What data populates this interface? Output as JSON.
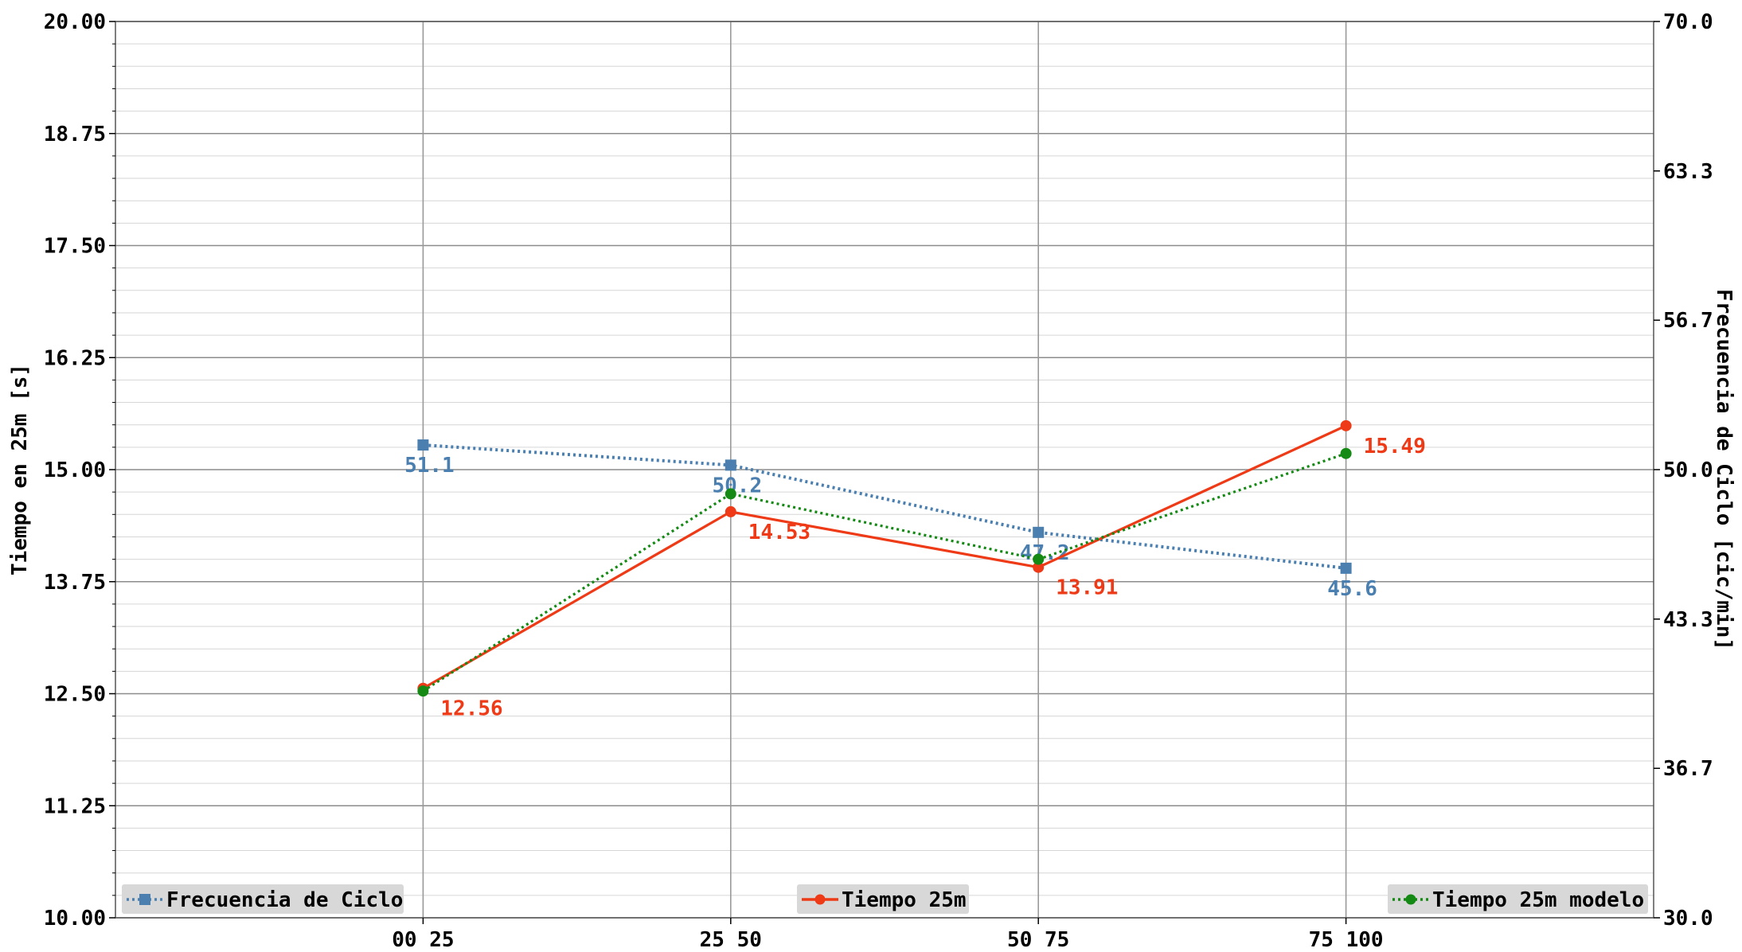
{
  "chart_data": {
    "type": "line",
    "categories": [
      "00_25",
      "25_50",
      "50_75",
      "75_100"
    ],
    "left_axis": {
      "label": "Tiempo en 25m [s]",
      "ylim": [
        10.0,
        20.0
      ],
      "ticks": [
        "10.00",
        "11.25",
        "12.50",
        "13.75",
        "15.00",
        "16.25",
        "17.50",
        "18.75",
        "20.00"
      ],
      "tick_values": [
        10.0,
        11.25,
        12.5,
        13.75,
        15.0,
        16.25,
        17.5,
        18.75,
        20.0
      ]
    },
    "right_axis": {
      "label": "Frecuencia de Ciclo [cic/min]",
      "ylim": [
        30.0,
        70.0
      ],
      "ticks": [
        "30.0",
        "36.7",
        "43.3",
        "50.0",
        "56.7",
        "63.3",
        "70.0"
      ],
      "tick_values": [
        30.0,
        36.67,
        43.33,
        50.0,
        56.67,
        63.33,
        70.0
      ]
    },
    "grid": true,
    "series": [
      {
        "name": "Frecuencia de Ciclo",
        "axis": "right",
        "values": [
          51.1,
          50.2,
          47.2,
          45.6
        ],
        "labels": [
          "51.1",
          "50.2",
          "47.2",
          "45.6"
        ],
        "color": "#4a7fb0",
        "line_style": "dotted",
        "marker": "square",
        "legend_position": "lower-left"
      },
      {
        "name": "Tiempo 25m",
        "axis": "left",
        "values": [
          12.56,
          14.53,
          13.91,
          15.49
        ],
        "labels": [
          "12.56",
          "14.53",
          "13.91",
          "15.49"
        ],
        "color": "#ee3a16",
        "line_style": "solid",
        "marker": "circle",
        "legend_position": "lower-center"
      },
      {
        "name": "Tiempo 25m modelo",
        "axis": "left",
        "values": [
          12.53,
          14.73,
          14.0,
          15.18
        ],
        "labels": [],
        "color": "#148a14",
        "line_style": "dotted",
        "marker": "circle",
        "legend_position": "lower-right"
      }
    ]
  }
}
